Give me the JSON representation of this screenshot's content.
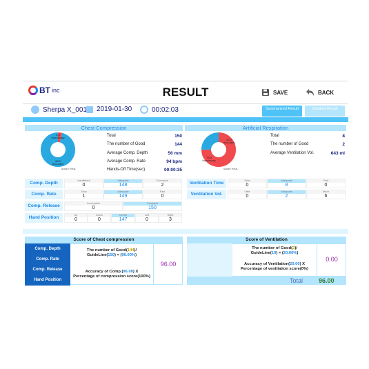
{
  "header": {
    "brand": "BT",
    "brand_suffix": "inc",
    "title": "RESULT",
    "save": "SAVE",
    "back": "BACK"
  },
  "info": {
    "name": "Sherpa X_0016",
    "date": "2019-01-30",
    "time": "00:02:03",
    "tab_summary": "Summarized Result",
    "tab_detail": "Detailed Result"
  },
  "compression": {
    "title": "Chest Compression",
    "donut": {
      "inaccuracy_label": "Inaccuracy",
      "inaccuracy_value": "4.0",
      "accuracy_label": "Accuracy",
      "accuracy_value": "96.0",
      "legend": "GOOD / TOTAL",
      "accuracy_fraction": 0.96
    },
    "stats": [
      {
        "label": "Total",
        "value": "150"
      },
      {
        "label": "The number of Good",
        "value": "144"
      },
      {
        "label": "Average Comp. Depth",
        "value": "56 mm"
      },
      {
        "label": "Average Comp. Rate",
        "value": "94 bpm"
      },
      {
        "label": "Hands-Off Time(sec)",
        "value": "00:00:35"
      }
    ],
    "rows": {
      "depth": {
        "label": "Comp. Depth",
        "cols": [
          "Insufficient",
          "Adequate",
          "Excessive"
        ],
        "vals": [
          "0",
          "148",
          "2"
        ]
      },
      "rate": {
        "label": "Comp. Rate",
        "cols": [
          "Slow",
          "Adequate",
          "Fast"
        ],
        "vals": [
          "1",
          "149",
          "0"
        ]
      },
      "release": {
        "label": "Comp. Release",
        "cols": [
          "Incomplete",
          "Complete"
        ],
        "vals": [
          "0",
          "150"
        ]
      },
      "hand": {
        "label": "Hand Position",
        "cols": [
          "Up",
          "Down",
          "Center",
          "Left",
          "Right"
        ],
        "vals": [
          "0",
          "0",
          "147",
          "0",
          "3"
        ]
      }
    }
  },
  "ventilation": {
    "title": "Artificial Respiration",
    "donut": {
      "inaccuracy_label": "Inaccuracy",
      "inaccuracy_value": "75.0",
      "accuracy_label": "Accuracy",
      "accuracy_value": "25.0",
      "legend": "GOOD / TOTAL",
      "accuracy_fraction": 0.25
    },
    "stats": [
      {
        "label": "Total",
        "value": "8"
      },
      {
        "label": "The number of Good",
        "value": "2"
      },
      {
        "label": "Average Ventilation Vol.",
        "value": "643 ml"
      }
    ],
    "rows": {
      "time": {
        "label": "Ventilation Time",
        "cols": [
          "Slow",
          "Adequate",
          "Fast"
        ],
        "vals": [
          "0",
          "8",
          "0"
        ]
      },
      "vol": {
        "label": "Ventilation Vol.",
        "cols": [
          "Little",
          "Adequate",
          "Much"
        ],
        "vals": [
          "0",
          "2",
          "6"
        ]
      }
    }
  },
  "score_comp": {
    "title": "Score of Chest compression",
    "labels": [
      "Comp. Depth",
      "Comp. Rate",
      "Comp. Release",
      "Hand Position"
    ],
    "f1a": "The number of Good(",
    "f1b": "144",
    "f1c": ")/",
    "f2a": "GuideLine(",
    "f2b": "150",
    "f2c": ") = (",
    "f2d": "96.00%",
    "f2e": ")",
    "f3a": "Accuracy of Comp.(",
    "f3b": "96.00",
    "f3c": ") X",
    "f4": "Percentage of compression score(100%)",
    "score": "96.00"
  },
  "score_vent": {
    "title": "Score of Ventilation",
    "f1a": "The number of Good(",
    "f1b": "2",
    "f1c": ")/",
    "f2a": "GuideLine(",
    "f2b": "10",
    "f2c": ") = (",
    "f2d": "20.00%",
    "f2e": ")",
    "f3a": "Accuracy of Ventilation(",
    "f3b": "20.00",
    "f3c": ") X",
    "f4": "Percentage of ventilation score(0%)",
    "score": "0.00",
    "total_label": "Total",
    "total": "96.00"
  },
  "colors": {
    "accent": "#4fc3f7",
    "header_bg": "#b3e5fc",
    "label_blue": "#1565c0",
    "donut_good": "#29a9e0",
    "donut_bad": "#f04a4f",
    "score": "#9c27b0"
  }
}
